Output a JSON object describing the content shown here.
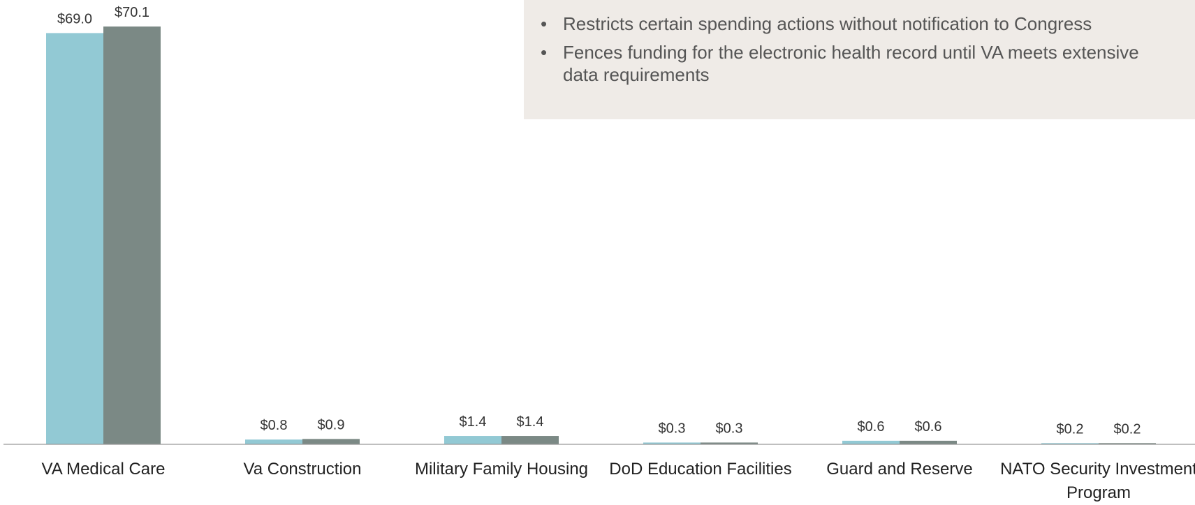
{
  "chart_data": {
    "type": "bar",
    "categories": [
      "VA Medical Care",
      "Va Construction",
      "Military Family Housing",
      "DoD Education Facilities",
      "Guard and Reserve",
      "NATO Security Investment Program"
    ],
    "series": [
      {
        "color": "#92c9d4",
        "values": [
          69.0,
          0.8,
          1.4,
          0.3,
          0.6,
          0.2
        ],
        "value_labels": [
          "$69.0",
          "$0.8",
          "$1.4",
          "$0.3",
          "$0.6",
          "$0.2"
        ]
      },
      {
        "color": "#7b8985",
        "values": [
          70.1,
          0.9,
          1.4,
          0.3,
          0.6,
          0.2
        ],
        "value_labels": [
          "$70.1",
          "$0.9",
          "$1.4",
          "$0.3",
          "$0.6",
          "$0.2"
        ]
      }
    ]
  },
  "notes": {
    "bullets": [
      "Restricts certain spending actions without notification to Congress",
      "Fences funding for the electronic health record until VA meets extensive data requirements"
    ]
  }
}
